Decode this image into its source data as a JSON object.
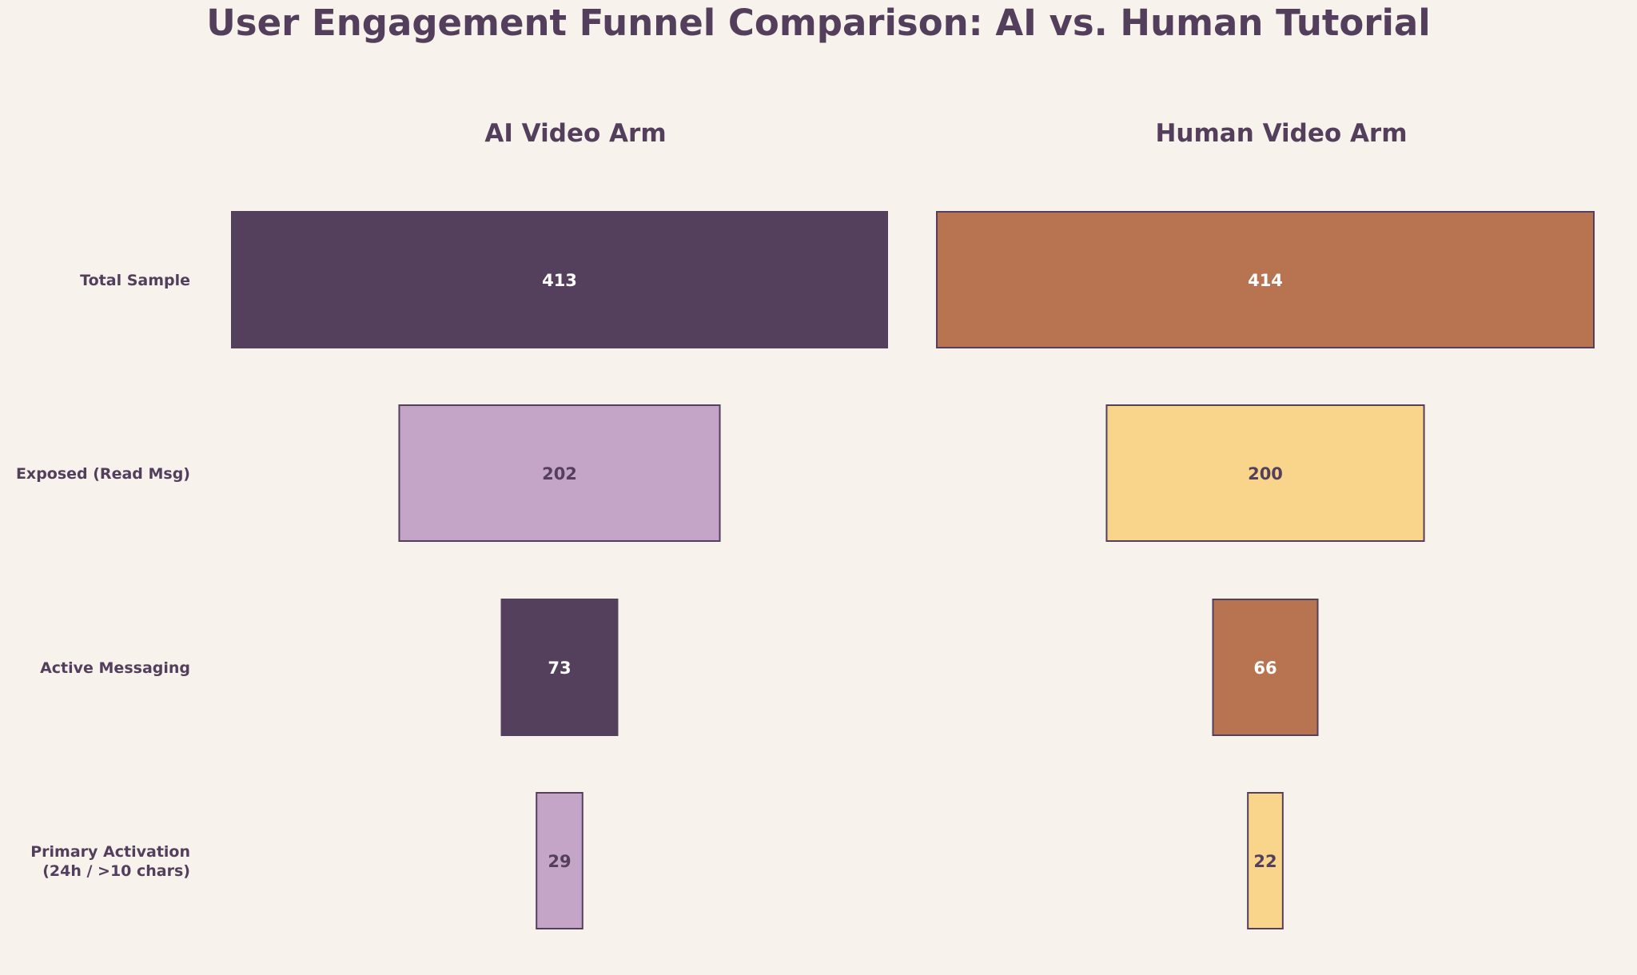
{
  "chart_data": {
    "type": "funnel",
    "title": "User Engagement Funnel Comparison: AI vs. Human Tutorial",
    "stages": [
      "Total Sample",
      "Exposed (Read Msg)",
      "Active Messaging",
      "Primary Activation\n(24h / >10 chars)"
    ],
    "series": [
      {
        "name": "AI Video Arm",
        "values": [
          413,
          202,
          73,
          29
        ],
        "colors": [
          "#54405c",
          "#c4a5c7",
          "#54405c",
          "#c4a5c7"
        ],
        "label_colors": [
          "#ffffff",
          "#54405c",
          "#ffffff",
          "#54405c"
        ]
      },
      {
        "name": "Human Video Arm",
        "values": [
          414,
          200,
          66,
          22
        ],
        "colors": [
          "#b87451",
          "#f9d48b",
          "#b87451",
          "#f9d48b"
        ],
        "label_colors": [
          "#ffffff",
          "#54405c",
          "#ffffff",
          "#54405c"
        ]
      }
    ],
    "grid": false,
    "legend": "none"
  }
}
